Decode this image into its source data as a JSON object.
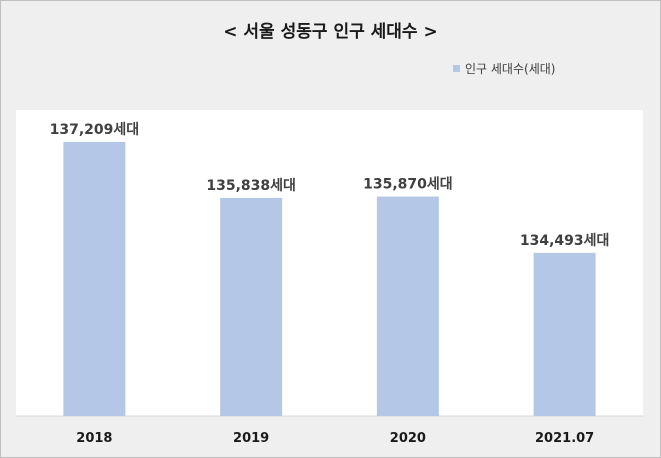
{
  "chart_data": {
    "type": "bar",
    "title": "< 서울 성동구 인구 세대수 >",
    "categories": [
      "2018",
      "2019",
      "2020",
      "2021.07"
    ],
    "series": [
      {
        "name": "인구 세대수(세대)",
        "values": [
          137209,
          135838,
          135870,
          134493
        ]
      }
    ],
    "data_labels": [
      "137,209세대",
      "135,838세대",
      "135,870세대",
      "134,493세대"
    ],
    "ylim": [
      130500,
      137500
    ],
    "grid": false,
    "legend_position": "top-right",
    "colors": {
      "bar": "#b4c7e7",
      "plot_background": "#ffffff",
      "chart_background": "#efefef"
    }
  }
}
